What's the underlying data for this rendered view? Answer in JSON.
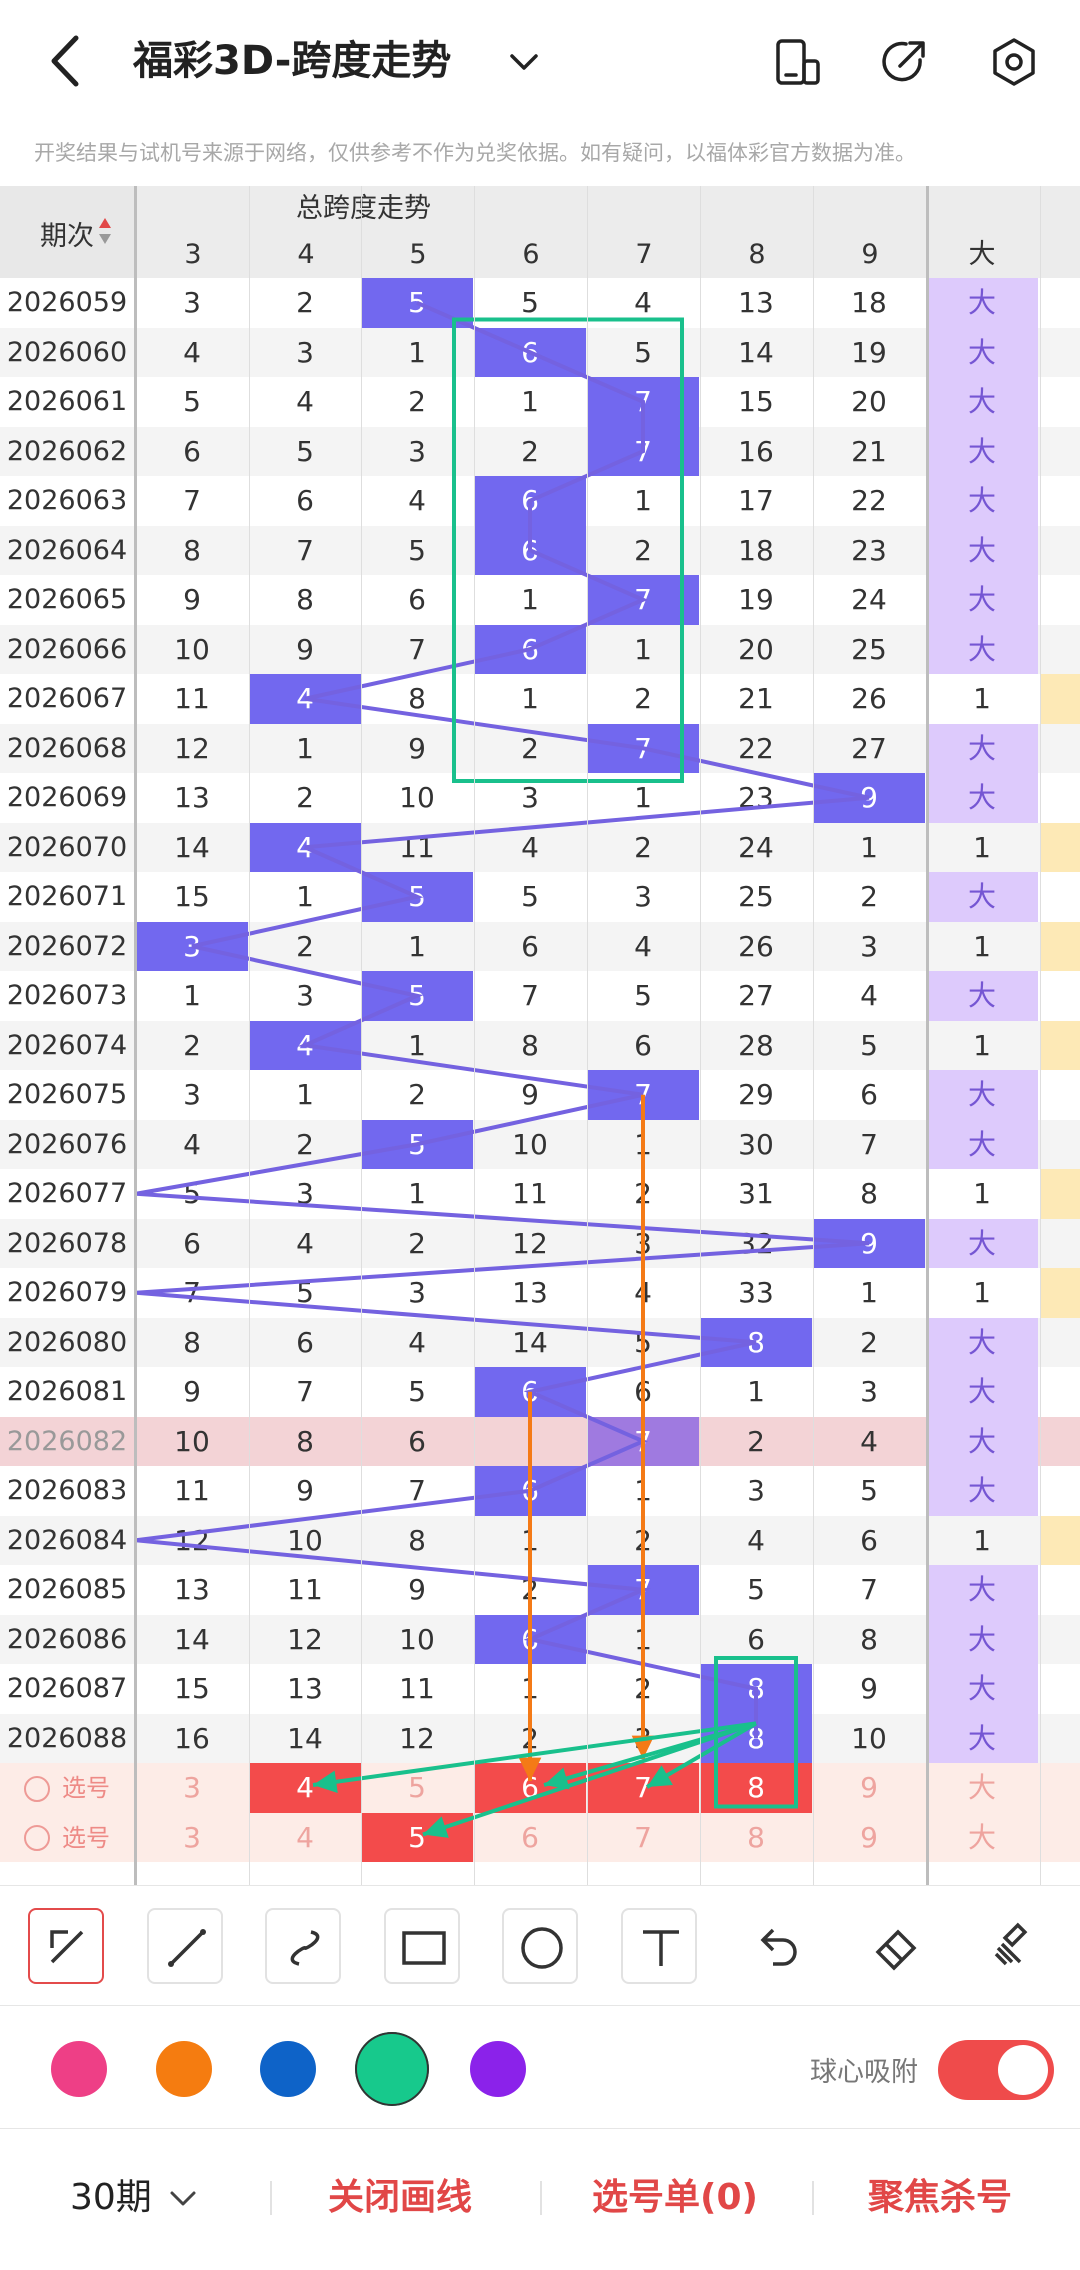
{
  "header": {
    "title": "福彩3D-跨度走势",
    "notice": "开奖结果与试机号来源于网络，仅供参考不作为兑奖依据。如有疑问，以福体彩官方数据为准。"
  },
  "table": {
    "period_header": "期次",
    "group_header": "总跨度走势",
    "span_columns": [
      "3",
      "4",
      "5",
      "6",
      "7",
      "8",
      "9"
    ],
    "big_column": "大",
    "rows": [
      {
        "p": "2026059",
        "v": [
          "3",
          "2",
          "5",
          "5",
          "4",
          "13",
          "18"
        ],
        "hit": 2,
        "b": "大"
      },
      {
        "p": "2026060",
        "v": [
          "4",
          "3",
          "1",
          "6",
          "5",
          "14",
          "19"
        ],
        "hit": 3,
        "b": "大"
      },
      {
        "p": "2026061",
        "v": [
          "5",
          "4",
          "2",
          "1",
          "7",
          "15",
          "20"
        ],
        "hit": 4,
        "b": "大"
      },
      {
        "p": "2026062",
        "v": [
          "6",
          "5",
          "3",
          "2",
          "7",
          "16",
          "21"
        ],
        "hit": 4,
        "b": "大"
      },
      {
        "p": "2026063",
        "v": [
          "7",
          "6",
          "4",
          "6",
          "1",
          "17",
          "22"
        ],
        "hit": 3,
        "b": "大"
      },
      {
        "p": "2026064",
        "v": [
          "8",
          "7",
          "5",
          "6",
          "2",
          "18",
          "23"
        ],
        "hit": 3,
        "b": "大"
      },
      {
        "p": "2026065",
        "v": [
          "9",
          "8",
          "6",
          "1",
          "7",
          "19",
          "24"
        ],
        "hit": 4,
        "b": "大"
      },
      {
        "p": "2026066",
        "v": [
          "10",
          "9",
          "7",
          "6",
          "1",
          "20",
          "25"
        ],
        "hit": 3,
        "b": "大"
      },
      {
        "p": "2026067",
        "v": [
          "11",
          "4",
          "8",
          "1",
          "2",
          "21",
          "26"
        ],
        "hit": 1,
        "b": "1"
      },
      {
        "p": "2026068",
        "v": [
          "12",
          "1",
          "9",
          "2",
          "7",
          "22",
          "27"
        ],
        "hit": 4,
        "b": "大"
      },
      {
        "p": "2026069",
        "v": [
          "13",
          "2",
          "10",
          "3",
          "1",
          "23",
          "9"
        ],
        "hit": 6,
        "b": "大"
      },
      {
        "p": "2026070",
        "v": [
          "14",
          "4",
          "11",
          "4",
          "2",
          "24",
          "1"
        ],
        "hit": 1,
        "b": "1"
      },
      {
        "p": "2026071",
        "v": [
          "15",
          "1",
          "5",
          "5",
          "3",
          "25",
          "2"
        ],
        "hit": 2,
        "b": "大"
      },
      {
        "p": "2026072",
        "v": [
          "3",
          "2",
          "1",
          "6",
          "4",
          "26",
          "3"
        ],
        "hit": 0,
        "b": "1"
      },
      {
        "p": "2026073",
        "v": [
          "1",
          "3",
          "5",
          "7",
          "5",
          "27",
          "4"
        ],
        "hit": 2,
        "b": "大"
      },
      {
        "p": "2026074",
        "v": [
          "2",
          "4",
          "1",
          "8",
          "6",
          "28",
          "5"
        ],
        "hit": 1,
        "b": "1"
      },
      {
        "p": "2026075",
        "v": [
          "3",
          "1",
          "2",
          "9",
          "7",
          "29",
          "6"
        ],
        "hit": 4,
        "b": "大"
      },
      {
        "p": "2026076",
        "v": [
          "4",
          "2",
          "5",
          "10",
          "1",
          "30",
          "7"
        ],
        "hit": 2,
        "b": "大"
      },
      {
        "p": "2026077",
        "v": [
          "5",
          "3",
          "1",
          "11",
          "2",
          "31",
          "8"
        ],
        "hit": -1,
        "b": "1"
      },
      {
        "p": "2026078",
        "v": [
          "6",
          "4",
          "2",
          "12",
          "3",
          "32",
          "9"
        ],
        "hit": 6,
        "b": "大"
      },
      {
        "p": "2026079",
        "v": [
          "7",
          "5",
          "3",
          "13",
          "4",
          "33",
          "1"
        ],
        "hit": -1,
        "b": "1"
      },
      {
        "p": "2026080",
        "v": [
          "8",
          "6",
          "4",
          "14",
          "5",
          "8",
          "2"
        ],
        "hit": 5,
        "b": "大"
      },
      {
        "p": "2026081",
        "v": [
          "9",
          "7",
          "5",
          "6",
          "6",
          "1",
          "3"
        ],
        "hit": 3,
        "b": "大"
      },
      {
        "p": "2026082",
        "v": [
          "10",
          "8",
          "6",
          "",
          "7",
          "2",
          "4"
        ],
        "hit": 4,
        "b": "大"
      },
      {
        "p": "2026083",
        "v": [
          "11",
          "9",
          "7",
          "6",
          "1",
          "3",
          "5"
        ],
        "hit": 3,
        "b": "大"
      },
      {
        "p": "2026084",
        "v": [
          "12",
          "10",
          "8",
          "1",
          "2",
          "4",
          "6"
        ],
        "hit": -1,
        "b": "1"
      },
      {
        "p": "2026085",
        "v": [
          "13",
          "11",
          "9",
          "2",
          "7",
          "5",
          "7"
        ],
        "hit": 4,
        "b": "大"
      },
      {
        "p": "2026086",
        "v": [
          "14",
          "12",
          "10",
          "6",
          "1",
          "6",
          "8"
        ],
        "hit": 3,
        "b": "大"
      },
      {
        "p": "2026087",
        "v": [
          "15",
          "13",
          "11",
          "1",
          "2",
          "8",
          "9"
        ],
        "hit": 5,
        "b": "大"
      },
      {
        "p": "2026088",
        "v": [
          "16",
          "14",
          "12",
          "2",
          "3",
          "8",
          "10"
        ],
        "hit": 5,
        "b": "大"
      }
    ],
    "select_rows": [
      {
        "label": "选号",
        "v": [
          "3",
          "4",
          "5",
          "6",
          "7",
          "8",
          "9"
        ],
        "sel": [
          1,
          3,
          4,
          5
        ],
        "b": "大"
      },
      {
        "label": "选号",
        "v": [
          "3",
          "4",
          "5",
          "6",
          "7",
          "8",
          "9"
        ],
        "sel": [
          2
        ],
        "b": "大"
      }
    ]
  },
  "tools": [
    "arrow-tool",
    "line-tool",
    "curve-tool",
    "rect-tool",
    "circle-tool",
    "text-tool",
    "undo-tool",
    "eraser-tool",
    "clear-tool"
  ],
  "palette": {
    "colors": [
      "#ee3f86",
      "#f57c10",
      "#0e63c8",
      "#17c98c",
      "#8b22ea"
    ],
    "selected": 3,
    "snap_label": "球心吸附",
    "snap_on": true
  },
  "bottom_bar": {
    "periods": "30期",
    "close_lines": "关闭画线",
    "selection_list": "选号单(0)",
    "focus_kill": "聚焦杀号"
  }
}
